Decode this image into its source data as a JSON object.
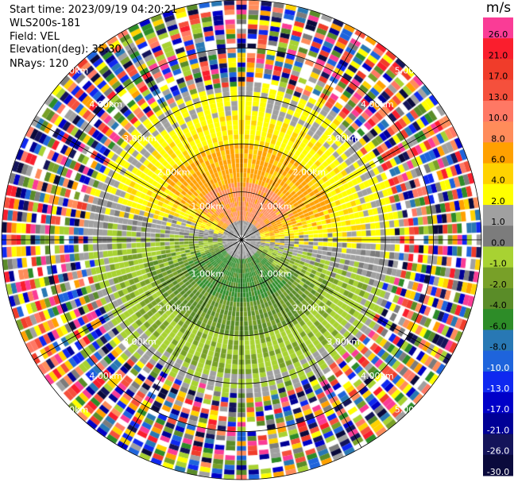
{
  "header": {
    "start_time": "Start time: 2023/09/19 04:20:21",
    "instrument": "WLS200s-181",
    "field": "Field: VEL",
    "elevation": "Elevation(deg): 35.30",
    "nrays": "NRays: 120"
  },
  "colorbar": {
    "unit": "m/s",
    "levels": [
      {
        "label": "26.0",
        "color": "#fa3c96"
      },
      {
        "label": "21.0",
        "color": "#fa1e2d"
      },
      {
        "label": "17.0",
        "color": "#f03c2a"
      },
      {
        "label": "13.0",
        "color": "#f5503c"
      },
      {
        "label": "10.0",
        "color": "#ff7864"
      },
      {
        "label": "8.0",
        "color": "#ff8c5a"
      },
      {
        "label": "6.0",
        "color": "#ffa000"
      },
      {
        "label": "4.0",
        "color": "#ffd200"
      },
      {
        "label": "2.0",
        "color": "#ffff00"
      },
      {
        "label": "1.0",
        "color": "#a0a0a0"
      },
      {
        "label": "0.0",
        "color": "#7c7c7c"
      },
      {
        "label": "-1.0",
        "color": "#a8d232"
      },
      {
        "label": "-2.0",
        "color": "#78a028"
      },
      {
        "label": "-4.0",
        "color": "#5a8c28"
      },
      {
        "label": "-6.0",
        "color": "#2d8c28"
      },
      {
        "label": "-8.0",
        "color": "#2878b4"
      },
      {
        "label": "-10.0",
        "color": "#1e64dc"
      },
      {
        "label": "-13.0",
        "color": "#0f28f0"
      },
      {
        "label": "-17.0",
        "color": "#0000c8"
      },
      {
        "label": "-21.0",
        "color": "#000096"
      },
      {
        "label": "-26.0",
        "color": "#14145a"
      },
      {
        "label": "-30.0",
        "color": "#0a0a3c"
      }
    ]
  },
  "chart_data": {
    "type": "ppi",
    "field": "VEL",
    "unit": "m/s",
    "nrays": 120,
    "range_rings_km": [
      {
        "r": 1,
        "label": "1.00km"
      },
      {
        "r": 2,
        "label": "2.00km"
      },
      {
        "r": 3,
        "label": "3.00km"
      },
      {
        "r": 4,
        "label": "4.00km"
      },
      {
        "r": 5,
        "label": "5.00km"
      }
    ],
    "max_range_km": 5.0,
    "spoke_azimuths_deg": [
      0,
      30,
      60,
      90,
      120,
      150,
      180,
      210,
      240,
      270,
      300,
      330
    ],
    "pattern": "dipole: positive (yellow/orange) toward north, negative (green) toward south, noisy beyond ~3.3 km"
  }
}
